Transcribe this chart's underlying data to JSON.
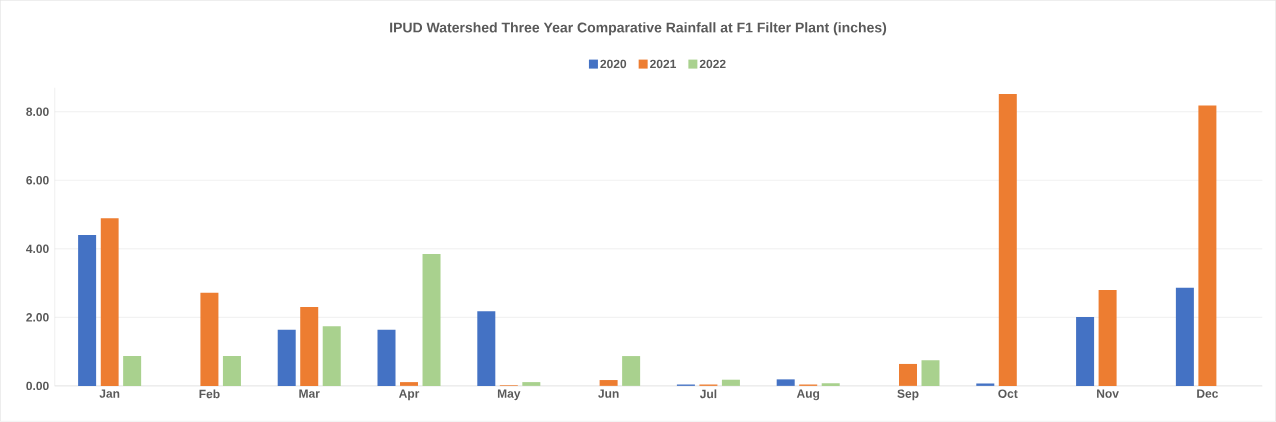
{
  "chart_data": {
    "type": "bar",
    "title": "IPUD Watershed Three Year Comparative Rainfall at F1 Filter Plant (inches)",
    "categories": [
      "Jan",
      "Feb",
      "Mar",
      "Apr",
      "May",
      "Jun",
      "Jul",
      "Aug",
      "Sep",
      "Oct",
      "Nov",
      "Dec"
    ],
    "series": [
      {
        "name": "2020",
        "color": "#4472c4",
        "values": [
          4.4,
          null,
          1.64,
          1.64,
          2.18,
          null,
          0.04,
          0.19,
          null,
          0.07,
          2.01,
          2.86
        ]
      },
      {
        "name": "2021",
        "color": "#ed7d31",
        "values": [
          4.89,
          2.72,
          2.3,
          0.11,
          0.02,
          0.17,
          0.04,
          0.04,
          0.64,
          8.52,
          2.8,
          8.18
        ]
      },
      {
        "name": "2022",
        "color": "#a9d18e",
        "values": [
          0.87,
          0.87,
          1.74,
          3.85,
          0.11,
          0.87,
          0.18,
          0.08,
          0.75,
          null,
          null,
          null
        ]
      }
    ],
    "ylim": [
      0,
      8.7
    ],
    "yticks": [
      {
        "value": 0,
        "label": "0.00"
      },
      {
        "value": 2,
        "label": "2.00"
      },
      {
        "value": 4,
        "label": "4.00"
      },
      {
        "value": 6,
        "label": "6.00"
      },
      {
        "value": 8,
        "label": "8.00"
      }
    ],
    "grid": "y",
    "legend": "top"
  }
}
